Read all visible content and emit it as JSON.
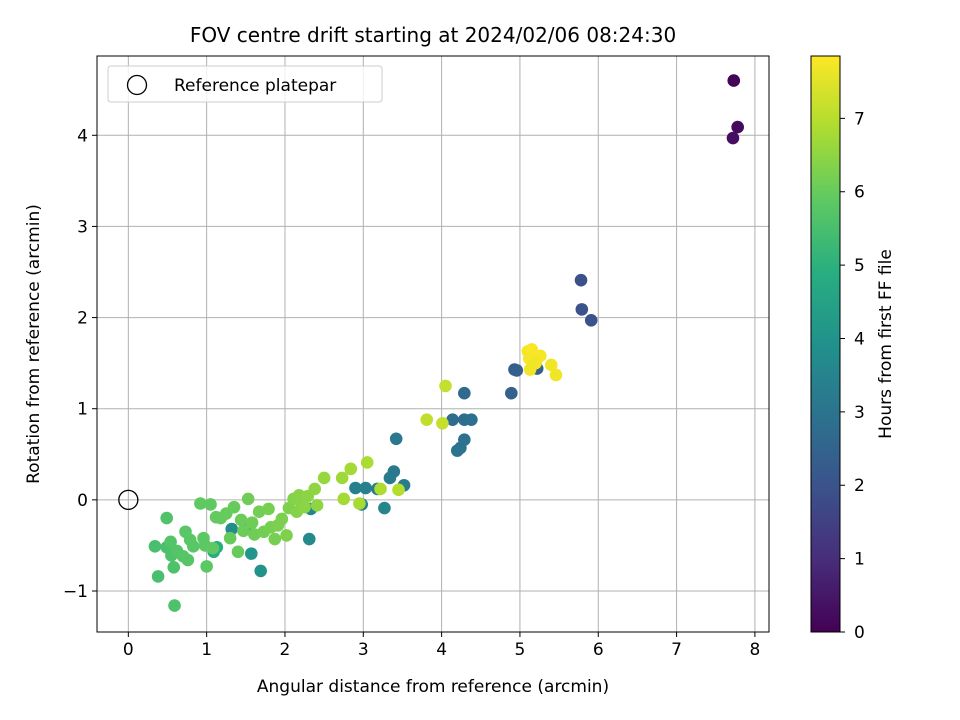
{
  "chart_data": {
    "type": "scatter",
    "title": "FOV centre drift starting at 2024/02/06 08:24:30",
    "xlabel": "Angular distance from reference (arcmin)",
    "ylabel": "Rotation from reference (arcmin)",
    "xlim": [
      -0.4,
      8.18
    ],
    "ylim": [
      -1.45,
      4.87
    ],
    "xticks": [
      0,
      1,
      2,
      3,
      4,
      5,
      6,
      7,
      8
    ],
    "yticks": [
      -1,
      0,
      1,
      2,
      3,
      4
    ],
    "grid": true,
    "legend": {
      "position": "top-left",
      "entries": [
        "Reference platepar"
      ]
    },
    "reference_point": {
      "x": 0,
      "y": 0
    },
    "colorbar": {
      "label": "Hours from first FF file",
      "colormap": "viridis",
      "range": [
        0,
        7.85
      ],
      "ticks": [
        0,
        1,
        2,
        3,
        4,
        5,
        6,
        7
      ]
    },
    "points": [
      {
        "x": 7.73,
        "y": 4.6,
        "t": 0.1
      },
      {
        "x": 7.78,
        "y": 4.09,
        "t": 0.2
      },
      {
        "x": 7.72,
        "y": 3.97,
        "t": 0.3
      },
      {
        "x": 5.78,
        "y": 2.41,
        "t": 1.9
      },
      {
        "x": 5.79,
        "y": 2.09,
        "t": 1.95
      },
      {
        "x": 5.91,
        "y": 1.97,
        "t": 2.0
      },
      {
        "x": 4.93,
        "y": 1.43,
        "t": 2.3
      },
      {
        "x": 4.96,
        "y": 1.42,
        "t": 2.35
      },
      {
        "x": 5.22,
        "y": 1.44,
        "t": 2.4
      },
      {
        "x": 4.89,
        "y": 1.17,
        "t": 2.45
      },
      {
        "x": 4.29,
        "y": 1.17,
        "t": 2.7
      },
      {
        "x": 4.14,
        "y": 0.88,
        "t": 2.75
      },
      {
        "x": 4.29,
        "y": 0.88,
        "t": 2.8
      },
      {
        "x": 4.38,
        "y": 0.88,
        "t": 2.85
      },
      {
        "x": 4.29,
        "y": 0.66,
        "t": 2.9
      },
      {
        "x": 4.24,
        "y": 0.57,
        "t": 2.95
      },
      {
        "x": 4.2,
        "y": 0.54,
        "t": 3.0
      },
      {
        "x": 3.42,
        "y": 0.67,
        "t": 3.1
      },
      {
        "x": 3.39,
        "y": 0.31,
        "t": 3.15
      },
      {
        "x": 3.34,
        "y": 0.24,
        "t": 3.2
      },
      {
        "x": 3.52,
        "y": 0.16,
        "t": 3.25
      },
      {
        "x": 3.18,
        "y": 0.12,
        "t": 3.3
      },
      {
        "x": 2.9,
        "y": 0.13,
        "t": 3.35
      },
      {
        "x": 3.03,
        "y": 0.13,
        "t": 3.4
      },
      {
        "x": 2.98,
        "y": -0.05,
        "t": 3.45
      },
      {
        "x": 3.27,
        "y": -0.09,
        "t": 3.5
      },
      {
        "x": 2.33,
        "y": -0.1,
        "t": 3.6
      },
      {
        "x": 2.31,
        "y": -0.43,
        "t": 3.7
      },
      {
        "x": 1.32,
        "y": -0.32,
        "t": 3.8
      },
      {
        "x": 1.69,
        "y": -0.78,
        "t": 4.0
      },
      {
        "x": 1.57,
        "y": -0.59,
        "t": 4.1
      },
      {
        "x": 1.53,
        "y": -0.32,
        "t": 4.2
      },
      {
        "x": 1.09,
        "y": -0.57,
        "t": 4.8
      },
      {
        "x": 1.13,
        "y": -0.52,
        "t": 4.9
      },
      {
        "x": 0.59,
        "y": -1.16,
        "t": 5.6
      },
      {
        "x": 0.38,
        "y": -0.84,
        "t": 5.5
      },
      {
        "x": 0.34,
        "y": -0.51,
        "t": 5.5
      },
      {
        "x": 0.49,
        "y": -0.52,
        "t": 5.55
      },
      {
        "x": 0.55,
        "y": -0.61,
        "t": 5.6
      },
      {
        "x": 0.58,
        "y": -0.74,
        "t": 5.6
      },
      {
        "x": 0.49,
        "y": -0.2,
        "t": 5.65
      },
      {
        "x": 0.62,
        "y": -0.56,
        "t": 5.7
      },
      {
        "x": 0.54,
        "y": -0.46,
        "t": 5.7
      },
      {
        "x": 0.7,
        "y": -0.62,
        "t": 5.75
      },
      {
        "x": 0.76,
        "y": -0.66,
        "t": 5.75
      },
      {
        "x": 0.73,
        "y": -0.35,
        "t": 5.8
      },
      {
        "x": 0.79,
        "y": -0.44,
        "t": 5.8
      },
      {
        "x": 0.83,
        "y": -0.51,
        "t": 5.8
      },
      {
        "x": 0.96,
        "y": -0.42,
        "t": 5.85
      },
      {
        "x": 0.98,
        "y": -0.5,
        "t": 5.85
      },
      {
        "x": 1.0,
        "y": -0.73,
        "t": 5.85
      },
      {
        "x": 0.92,
        "y": -0.04,
        "t": 5.9
      },
      {
        "x": 1.05,
        "y": -0.05,
        "t": 5.9
      },
      {
        "x": 1.08,
        "y": -0.53,
        "t": 5.9
      },
      {
        "x": 1.12,
        "y": -0.19,
        "t": 5.95
      },
      {
        "x": 1.18,
        "y": -0.2,
        "t": 5.95
      },
      {
        "x": 1.25,
        "y": -0.15,
        "t": 6.0
      },
      {
        "x": 1.35,
        "y": -0.08,
        "t": 6.0
      },
      {
        "x": 1.3,
        "y": -0.42,
        "t": 6.0
      },
      {
        "x": 1.4,
        "y": -0.57,
        "t": 6.0
      },
      {
        "x": 1.44,
        "y": -0.22,
        "t": 6.05
      },
      {
        "x": 1.47,
        "y": -0.34,
        "t": 6.05
      },
      {
        "x": 1.53,
        "y": 0.01,
        "t": 6.1
      },
      {
        "x": 1.58,
        "y": -0.25,
        "t": 6.1
      },
      {
        "x": 1.61,
        "y": -0.38,
        "t": 6.1
      },
      {
        "x": 1.67,
        "y": -0.13,
        "t": 6.15
      },
      {
        "x": 1.73,
        "y": -0.35,
        "t": 6.15
      },
      {
        "x": 1.79,
        "y": -0.1,
        "t": 6.2
      },
      {
        "x": 1.82,
        "y": -0.3,
        "t": 6.2
      },
      {
        "x": 1.87,
        "y": -0.43,
        "t": 6.2
      },
      {
        "x": 1.91,
        "y": -0.28,
        "t": 6.25
      },
      {
        "x": 1.96,
        "y": -0.21,
        "t": 6.25
      },
      {
        "x": 2.02,
        "y": -0.39,
        "t": 6.3
      },
      {
        "x": 2.05,
        "y": -0.09,
        "t": 6.3
      },
      {
        "x": 2.11,
        "y": 0.01,
        "t": 6.35
      },
      {
        "x": 2.15,
        "y": -0.13,
        "t": 6.35
      },
      {
        "x": 2.18,
        "y": 0.05,
        "t": 6.4
      },
      {
        "x": 2.21,
        "y": -0.03,
        "t": 6.4
      },
      {
        "x": 2.25,
        "y": -0.08,
        "t": 6.45
      },
      {
        "x": 2.29,
        "y": 0.04,
        "t": 6.45
      },
      {
        "x": 2.38,
        "y": 0.12,
        "t": 6.5
      },
      {
        "x": 2.41,
        "y": -0.06,
        "t": 6.5
      },
      {
        "x": 2.5,
        "y": 0.24,
        "t": 6.6
      },
      {
        "x": 2.73,
        "y": 0.24,
        "t": 6.7
      },
      {
        "x": 2.84,
        "y": 0.34,
        "t": 6.75
      },
      {
        "x": 2.75,
        "y": 0.01,
        "t": 6.75
      },
      {
        "x": 2.95,
        "y": -0.04,
        "t": 6.8
      },
      {
        "x": 3.05,
        "y": 0.41,
        "t": 6.85
      },
      {
        "x": 3.22,
        "y": 0.12,
        "t": 6.9
      },
      {
        "x": 3.45,
        "y": 0.11,
        "t": 6.95
      },
      {
        "x": 3.81,
        "y": 0.88,
        "t": 7.1
      },
      {
        "x": 4.05,
        "y": 1.25,
        "t": 7.15
      },
      {
        "x": 4.01,
        "y": 0.84,
        "t": 7.15
      },
      {
        "x": 5.1,
        "y": 1.63,
        "t": 7.75
      },
      {
        "x": 5.15,
        "y": 1.65,
        "t": 7.8
      },
      {
        "x": 5.12,
        "y": 1.55,
        "t": 7.75
      },
      {
        "x": 5.26,
        "y": 1.58,
        "t": 7.75
      },
      {
        "x": 5.2,
        "y": 1.5,
        "t": 7.7
      },
      {
        "x": 5.4,
        "y": 1.48,
        "t": 7.7
      },
      {
        "x": 5.46,
        "y": 1.37,
        "t": 7.7
      },
      {
        "x": 5.13,
        "y": 1.43,
        "t": 7.7
      }
    ]
  }
}
